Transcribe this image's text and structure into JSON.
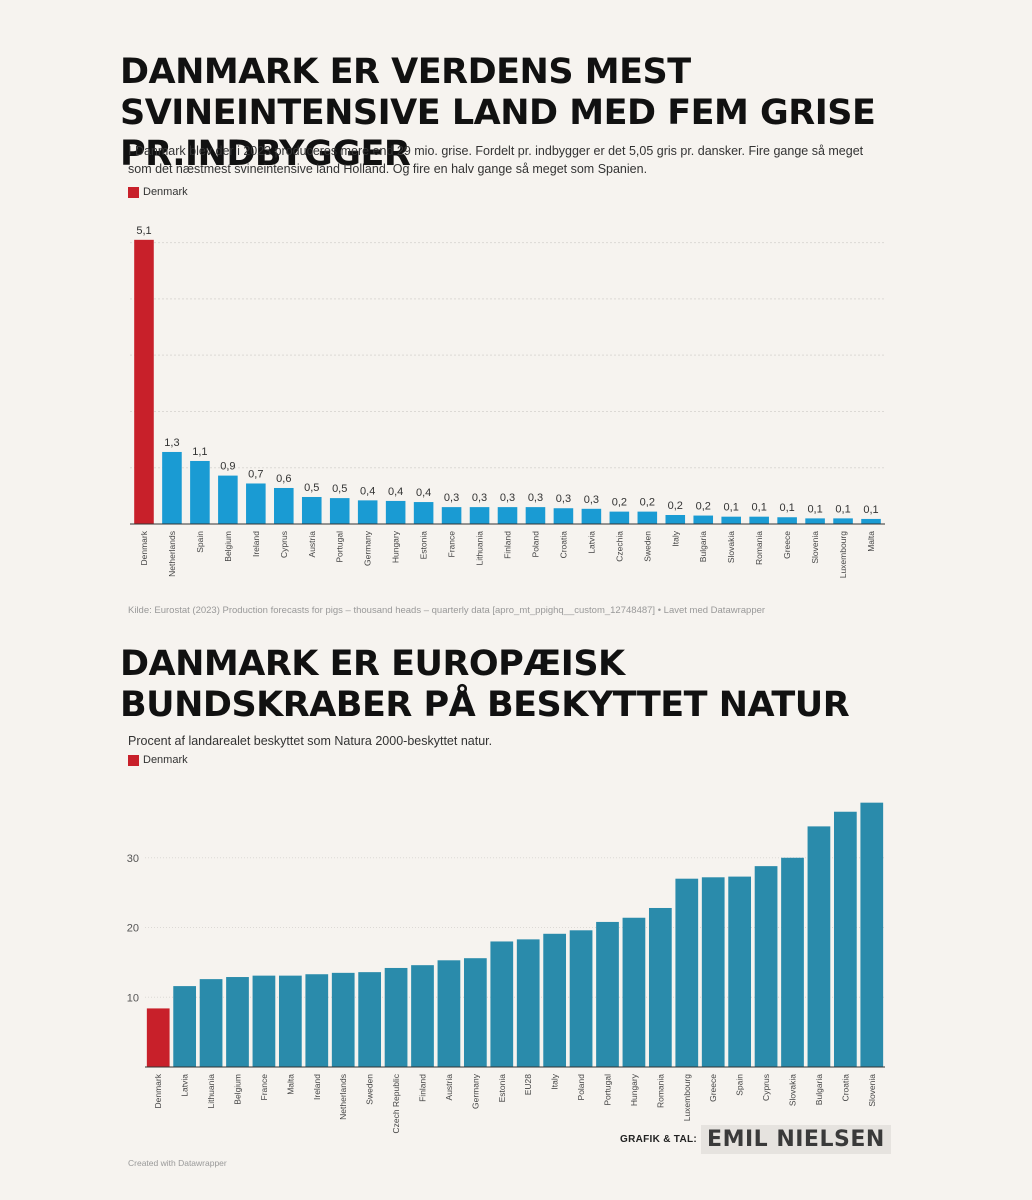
{
  "chart_data": [
    {
      "type": "bar",
      "title": "DANMARK ER VERDENS MEST SVINEINTENSIVE LAND MED FEM GRISE PR.INDBYGGER",
      "subtitle": "I Danmark blev der i 2023 produceres mere end 29 mio. grise. Fordelt pr. indbygger er det 5,05 gris pr. dansker. Fire gange så meget som det næstmest svineintensive land Holland. Og fire en halv gange så meget som Spanien.",
      "legend": "Denmark",
      "highlight": "Denmark",
      "categories": [
        "Denmark",
        "Netherlands",
        "Spain",
        "Belgium",
        "Ireland",
        "Cyprus",
        "Austria",
        "Portugal",
        "Germany",
        "Hungary",
        "Estonia",
        "France",
        "Lithuania",
        "Finland",
        "Poland",
        "Croatia",
        "Latvia",
        "Czechia",
        "Sweden",
        "Italy",
        "Bulgaria",
        "Slovakia",
        "Romania",
        "Greece",
        "Slovenia",
        "Luxembourg",
        "Malta"
      ],
      "values": [
        5.05,
        1.28,
        1.12,
        0.86,
        0.72,
        0.64,
        0.48,
        0.46,
        0.42,
        0.41,
        0.39,
        0.3,
        0.3,
        0.3,
        0.3,
        0.28,
        0.27,
        0.22,
        0.22,
        0.16,
        0.15,
        0.13,
        0.13,
        0.12,
        0.1,
        0.1,
        0.09
      ],
      "labels": [
        "5,1",
        "1,3",
        "1,1",
        "0,9",
        "0,7",
        "0,6",
        "0,5",
        "0,5",
        "0,4",
        "0,4",
        "0,4",
        "0,3",
        "0,3",
        "0,3",
        "0,3",
        "0,3",
        "0,3",
        "0,2",
        "0,2",
        "0,2",
        "0,2",
        "0,1",
        "0,1",
        "0,1",
        "0,1",
        "0,1",
        "0,1"
      ],
      "ylim": [
        0,
        5.1
      ],
      "gridlines": [
        1,
        2,
        3,
        4,
        5
      ],
      "source": "Kilde: Eurostat (2023) Production forecasts for pigs – thousand heads – quarterly data [apro_mt_ppighq__custom_12748487]  • Lavet med Datawrapper",
      "colors": {
        "highlight": "#c8202a",
        "bar": "#1a9bd3"
      }
    },
    {
      "type": "bar",
      "title": "DANMARK ER EUROPÆISK BUNDSKRABER PÅ BESKYTTET NATUR",
      "subtitle": "Procent af landarealet beskyttet som Natura 2000-beskyttet natur.",
      "legend": "Denmark",
      "highlight": "Denmark",
      "categories": [
        "Denmark",
        "Latvia",
        "Lithuania",
        "Belgium",
        "France",
        "Malta",
        "Ireland",
        "Netherlands",
        "Sweden",
        "Czech Republic",
        "Finland",
        "Austria",
        "Germany",
        "Estonia",
        "EU28",
        "Italy",
        "Poland",
        "Portugal",
        "Hungary",
        "Romania",
        "Luxembourg",
        "Greece",
        "Spain",
        "Cyprus",
        "Slovakia",
        "Bulgaria",
        "Croatia",
        "Slovenia"
      ],
      "values": [
        8.4,
        11.6,
        12.6,
        12.9,
        13.1,
        13.1,
        13.3,
        13.5,
        13.6,
        14.2,
        14.6,
        15.3,
        15.6,
        18.0,
        18.3,
        19.1,
        19.6,
        20.8,
        21.4,
        22.8,
        27.0,
        27.2,
        27.3,
        28.8,
        30.0,
        34.5,
        36.6,
        37.9
      ],
      "ylim": [
        0,
        39
      ],
      "y_ticks": [
        10,
        20,
        30
      ],
      "credit": "Created with Datawrapper",
      "colors": {
        "highlight": "#c8202a",
        "bar": "#2a8bab"
      }
    }
  ],
  "signature": {
    "label": "GRAFIK & TAL:",
    "name": "EMIL NIELSEN"
  }
}
